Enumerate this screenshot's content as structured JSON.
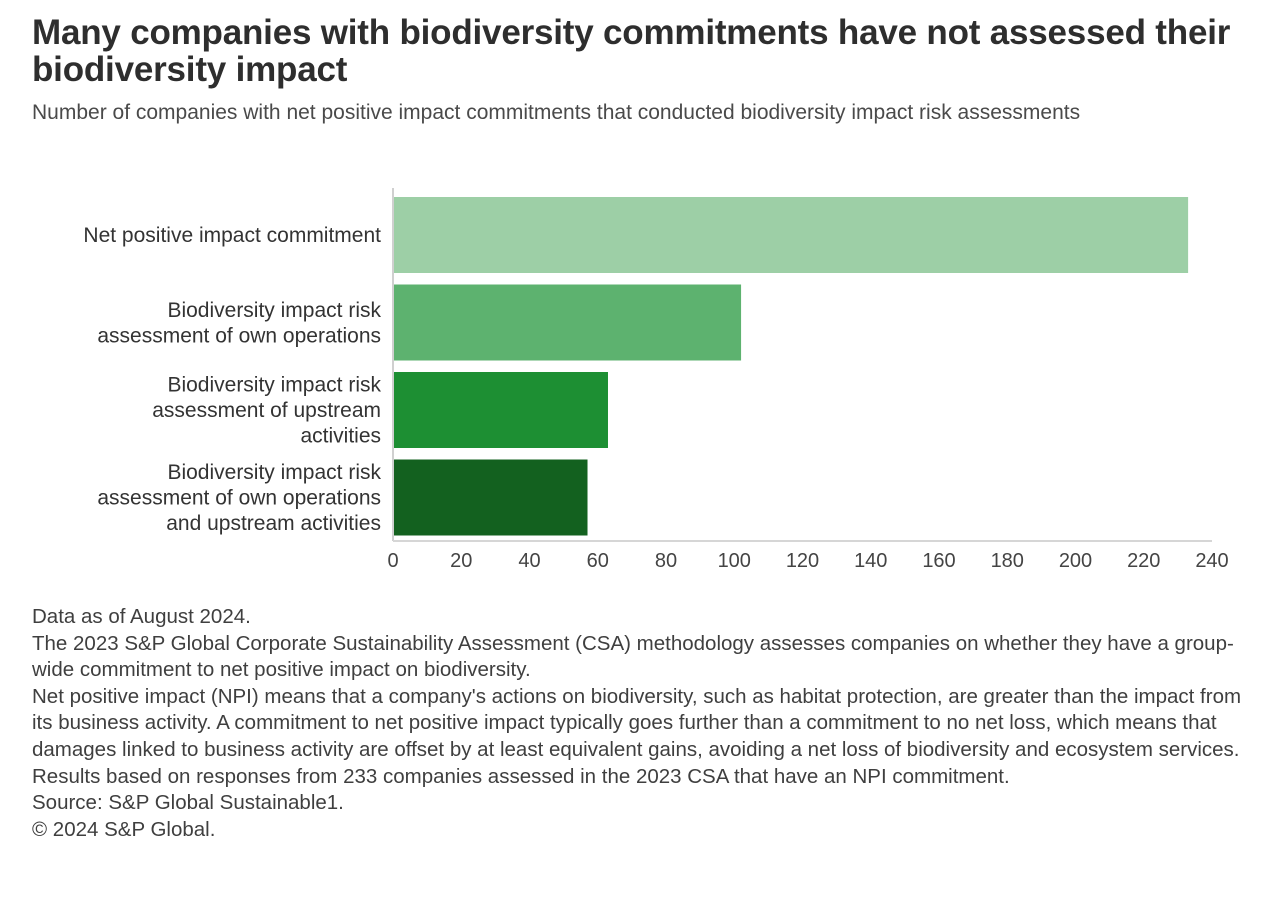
{
  "title": "Many companies with biodiversity commitments have not assessed their biodiversity impact",
  "subtitle": "Number of companies with net positive impact commitments that conducted biodiversity impact risk assessments",
  "chart_data": {
    "type": "bar",
    "orientation": "horizontal",
    "categories": [
      [
        "Net positive impact commitment"
      ],
      [
        "Biodiversity impact risk",
        "assessment of own operations"
      ],
      [
        "Biodiversity impact risk",
        "assessment of upstream",
        "activities"
      ],
      [
        "Biodiversity impact risk",
        "assessment of own operations",
        "and upstream activities"
      ]
    ],
    "values": [
      233,
      102,
      63,
      57
    ],
    "colors": [
      "#9dcfa6",
      "#5db26f",
      "#1d8f33",
      "#13611f"
    ],
    "xlim": [
      0,
      240
    ],
    "xticks": [
      "0",
      "20",
      "40",
      "60",
      "80",
      "100",
      "120",
      "140",
      "160",
      "180",
      "200",
      "220",
      "240"
    ],
    "grid": false
  },
  "notes": [
    "Data as of August 2024.",
    "The 2023 S&P Global Corporate Sustainability Assessment (CSA) methodology assesses companies on whether they have a group-wide commitment to net positive impact on biodiversity.",
    "Net positive impact (NPI) means that a company's actions on biodiversity, such as habitat protection, are greater than the impact from its business activity. A commitment to net positive impact typically goes further than a commitment to no net loss, which means that damages linked to business activity are offset by at least equivalent gains, avoiding a net loss of biodiversity and ecosystem services.",
    "Results based on responses from 233 companies assessed in the 2023 CSA that have an NPI commitment.",
    "Source: S&P Global Sustainable1.",
    "© 2024 S&P Global."
  ]
}
